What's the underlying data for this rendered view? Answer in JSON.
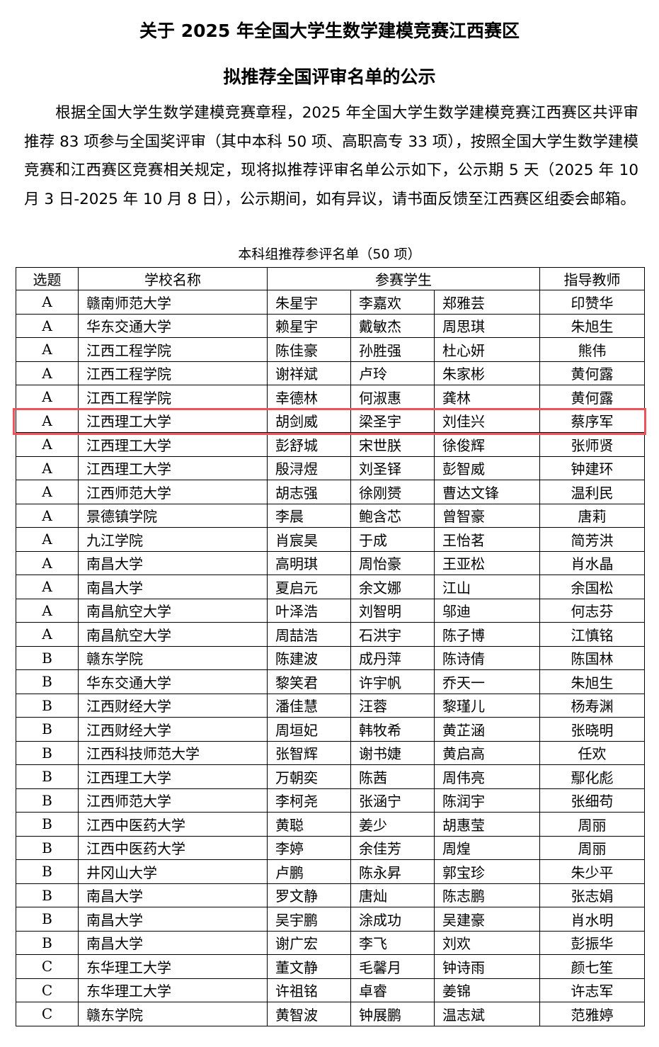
{
  "title_line1": "关于 2025 年全国大学生数学建模竞赛江西赛区",
  "title_line2": "拟推荐全国评审名单的公示",
  "paragraph": "根据全国大学生数学建模竞赛章程，2025 年全国大学生数学建模竞赛江西赛区共评审推荐 83 项参与全国奖评审（其中本科 50 项、高职高专 33 项），按照全国大学生数学建模竞赛和江西赛区竞赛相关规定，现将拟推荐评审名单公示如下，公示期 5 天（2025 年 10 月 3 日-2025 年 10 月 8 日），公示期间，如有异议，请书面反馈至江西赛区组委会邮箱。",
  "table_caption": "本科组推荐参评名单（50 项）",
  "highlight_color": "#f0525a",
  "highlighted_row": 5,
  "table": {
    "headers": {
      "topic": "选题",
      "school": "学校名称",
      "students": "参赛学生",
      "advisor": "指导教师"
    },
    "rows": [
      {
        "topic": "A",
        "school": "赣南师范大学",
        "s1": "朱星宇",
        "s2": "李嘉欢",
        "s3": "郑雅芸",
        "advisor": "印赞华"
      },
      {
        "topic": "A",
        "school": "华东交通大学",
        "s1": "赖星宇",
        "s2": "戴敏杰",
        "s3": "周思琪",
        "advisor": "朱旭生"
      },
      {
        "topic": "A",
        "school": "江西工程学院",
        "s1": "陈佳豪",
        "s2": "孙胜强",
        "s3": "杜心妍",
        "advisor": "熊伟"
      },
      {
        "topic": "A",
        "school": "江西工程学院",
        "s1": "谢祥斌",
        "s2": "卢玲",
        "s3": "朱家彬",
        "advisor": "黄何露"
      },
      {
        "topic": "A",
        "school": "江西工程学院",
        "s1": "幸德林",
        "s2": "何淑惠",
        "s3": "龚林",
        "advisor": "黄何露"
      },
      {
        "topic": "A",
        "school": "江西理工大学",
        "s1": "胡剑威",
        "s2": "梁圣宇",
        "s3": "刘佳兴",
        "advisor": "蔡序军"
      },
      {
        "topic": "A",
        "school": "江西理工大学",
        "s1": "彭舒城",
        "s2": "宋世朕",
        "s3": "徐俊辉",
        "advisor": "张师贤"
      },
      {
        "topic": "A",
        "school": "江西理工大学",
        "s1": "殷浔煜",
        "s2": "刘圣铎",
        "s3": "彭智威",
        "advisor": "钟建环"
      },
      {
        "topic": "A",
        "school": "江西师范大学",
        "s1": "胡志强",
        "s2": "徐刚赟",
        "s3": "曹达文锋",
        "advisor": "温利民"
      },
      {
        "topic": "A",
        "school": "景德镇学院",
        "s1": "李晨",
        "s2": "鲍含芯",
        "s3": "曾智豪",
        "advisor": "唐莉"
      },
      {
        "topic": "A",
        "school": "九江学院",
        "s1": "肖宸昊",
        "s2": "于成",
        "s3": "王怡茗",
        "advisor": "简芳洪"
      },
      {
        "topic": "A",
        "school": "南昌大学",
        "s1": "高明琪",
        "s2": "周怡豪",
        "s3": "王亚松",
        "advisor": "肖水晶"
      },
      {
        "topic": "A",
        "school": "南昌大学",
        "s1": "夏启元",
        "s2": "余文娜",
        "s3": "江山",
        "advisor": "余国松"
      },
      {
        "topic": "A",
        "school": "南昌航空大学",
        "s1": "叶泽浩",
        "s2": "刘智明",
        "s3": "邬迪",
        "advisor": "何志芬"
      },
      {
        "topic": "A",
        "school": "南昌航空大学",
        "s1": "周喆浩",
        "s2": "石洪宇",
        "s3": "陈子博",
        "advisor": "江慎铭"
      },
      {
        "topic": "B",
        "school": "赣东学院",
        "s1": "陈建波",
        "s2": "成丹萍",
        "s3": "陈诗倩",
        "advisor": "陈国林"
      },
      {
        "topic": "B",
        "school": "华东交通大学",
        "s1": "黎笑君",
        "s2": "许宇帆",
        "s3": "乔天一",
        "advisor": "朱旭生"
      },
      {
        "topic": "B",
        "school": "江西财经大学",
        "s1": "潘佳慧",
        "s2": "汪蓉",
        "s3": "黎瑾儿",
        "advisor": "杨寿渊"
      },
      {
        "topic": "B",
        "school": "江西财经大学",
        "s1": "周垣妃",
        "s2": "韩牧希",
        "s3": "黄芷涵",
        "advisor": "张晓明"
      },
      {
        "topic": "B",
        "school": "江西科技师范大学",
        "s1": "张智辉",
        "s2": "谢书婕",
        "s3": "黄启高",
        "advisor": "任欢"
      },
      {
        "topic": "B",
        "school": "江西理工大学",
        "s1": "万朝奕",
        "s2": "陈茜",
        "s3": "周伟亮",
        "advisor": "鄢化彪"
      },
      {
        "topic": "B",
        "school": "江西师范大学",
        "s1": "李柯尧",
        "s2": "张涵宁",
        "s3": "陈润宇",
        "advisor": "张细苟"
      },
      {
        "topic": "B",
        "school": "江西中医药大学",
        "s1": "黄聪",
        "s2": "姜少",
        "s3": "胡惠莹",
        "advisor": "周丽"
      },
      {
        "topic": "B",
        "school": "江西中医药大学",
        "s1": "李婷",
        "s2": "余佳芳",
        "s3": "周煌",
        "advisor": "周丽"
      },
      {
        "topic": "B",
        "school": "井冈山大学",
        "s1": "卢鹏",
        "s2": "陈永昇",
        "s3": "郭宝珍",
        "advisor": "朱少平"
      },
      {
        "topic": "B",
        "school": "南昌大学",
        "s1": "罗文静",
        "s2": "唐灿",
        "s3": "陈志鹏",
        "advisor": "张志娟"
      },
      {
        "topic": "B",
        "school": "南昌大学",
        "s1": "吴宇鹏",
        "s2": "涂成功",
        "s3": "吴建豪",
        "advisor": "肖水明"
      },
      {
        "topic": "B",
        "school": "南昌大学",
        "s1": "谢广宏",
        "s2": "李飞",
        "s3": "刘欢",
        "advisor": "彭振华"
      },
      {
        "topic": "C",
        "school": "东华理工大学",
        "s1": "董文静",
        "s2": "毛馨月",
        "s3": "钟诗雨",
        "advisor": "颜七笙"
      },
      {
        "topic": "C",
        "school": "东华理工大学",
        "s1": "许祖铭",
        "s2": "卓睿",
        "s3": "姜锦",
        "advisor": "许志军"
      },
      {
        "topic": "C",
        "school": "赣东学院",
        "s1": "黄智波",
        "s2": "钟展鹏",
        "s3": "温志斌",
        "advisor": "范雅婷"
      }
    ]
  }
}
